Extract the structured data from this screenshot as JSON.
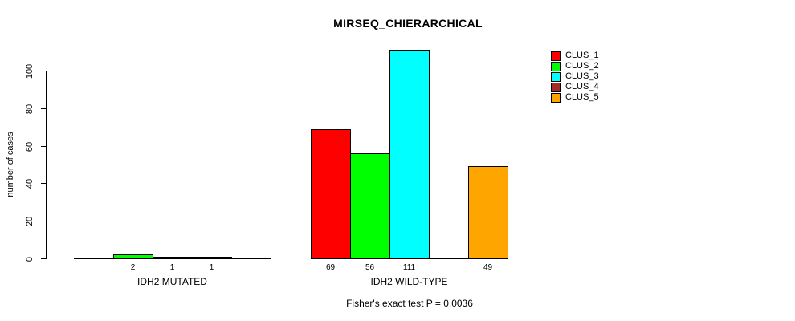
{
  "chart_data": {
    "type": "bar",
    "title": "MIRSEQ_CHIERARCHICAL",
    "xlabel": "",
    "ylabel": "number of cases",
    "categories": [
      "IDH2 MUTATED",
      "IDH2 WILD-TYPE"
    ],
    "series": [
      {
        "name": "CLUS_1",
        "color": "#ff0000",
        "values": [
          0,
          69
        ]
      },
      {
        "name": "CLUS_2",
        "color": "#00ff00",
        "values": [
          2,
          56
        ]
      },
      {
        "name": "CLUS_3",
        "color": "#00ffff",
        "values": [
          1,
          111
        ]
      },
      {
        "name": "CLUS_4",
        "color": "#a52a2a",
        "values": [
          1,
          0
        ]
      },
      {
        "name": "CLUS_5",
        "color": "#ffa500",
        "values": [
          0,
          49
        ]
      }
    ],
    "yticks": [
      0,
      20,
      40,
      60,
      80,
      100
    ],
    "ylim": [
      0,
      111
    ],
    "grid": false,
    "legend_position": "top-right",
    "bar_value_labels_shown": true,
    "annotation": "Fisher's exact test P = 0.0036"
  }
}
